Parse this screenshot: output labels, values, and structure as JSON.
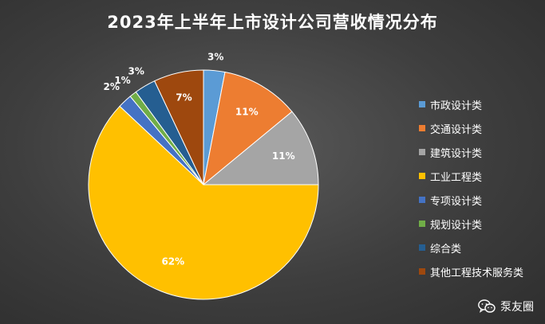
{
  "chart_data": {
    "type": "pie",
    "title": "2023年上半年上市设计公司营收情况分布",
    "categories": [
      "市政设计类",
      "交通设计类",
      "建筑设计类",
      "工业工程类",
      "专项设计类",
      "规划设计类",
      "综合类",
      "其他工程技术服务类"
    ],
    "values": [
      3,
      11,
      11,
      62,
      2,
      1,
      3,
      7
    ],
    "labels": [
      "3%",
      "11%",
      "11%",
      "62%",
      "2%",
      "1%",
      "3%",
      "7%"
    ],
    "colors": [
      "#5b9bd5",
      "#ed7d31",
      "#a5a5a5",
      "#ffc000",
      "#4472c4",
      "#70ad47",
      "#255e91",
      "#9e480e"
    ],
    "legend_position": "right",
    "start_angle": "12 o'clock",
    "direction": "clockwise"
  },
  "watermark": {
    "icon": "wechat-icon",
    "text": "泵友圈"
  }
}
